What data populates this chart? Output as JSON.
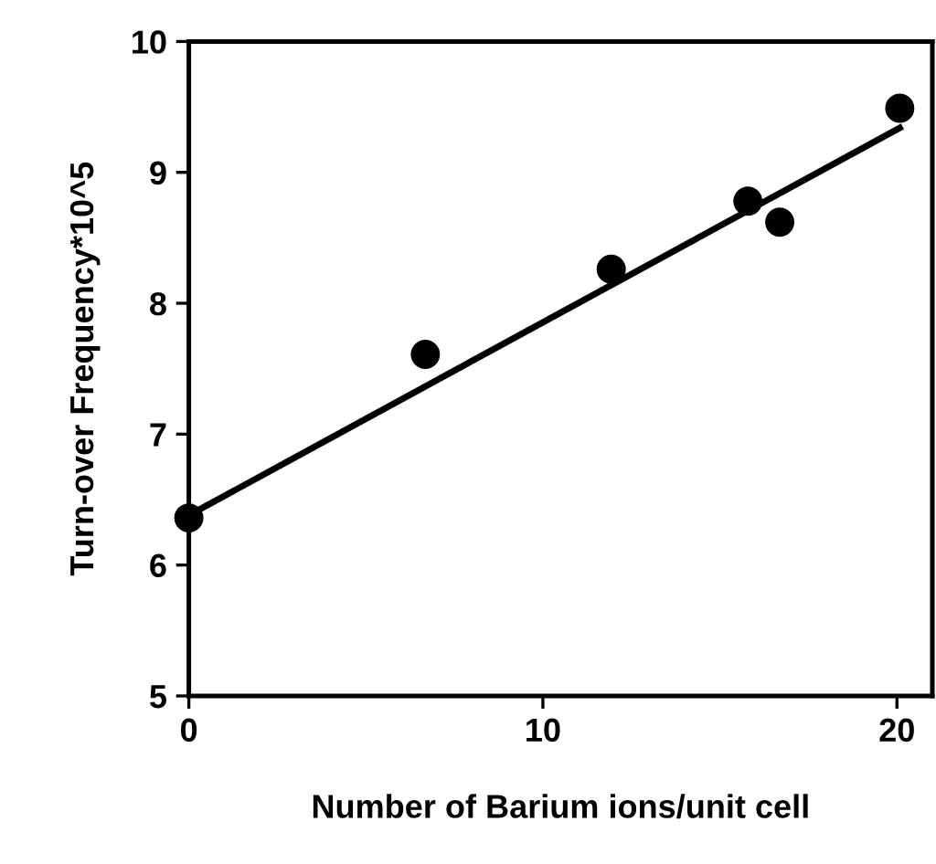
{
  "chart_data": {
    "type": "scatter",
    "xlabel": "Number of Barium ions/unit cell",
    "ylabel": "Turn-over Frequency*10^5",
    "xlim": [
      0,
      21
    ],
    "xticks": [
      0,
      10,
      20
    ],
    "ylim": [
      5,
      10
    ],
    "yticks": [
      5,
      6,
      7,
      8,
      9,
      10
    ],
    "grid": false,
    "legend": false,
    "series": [
      {
        "marker": "circle",
        "color": "#000000",
        "x": [
          0,
          6.68,
          11.93,
          15.79,
          16.69,
          20.08
        ],
        "values": [
          6.36,
          7.61,
          8.26,
          8.78,
          8.62,
          9.49
        ]
      },
      {
        "type": "line",
        "marker": "none",
        "color": "#000000",
        "line_style": "solid",
        "x": [
          0,
          20.08
        ],
        "values": [
          6.38,
          9.34
        ]
      }
    ]
  }
}
